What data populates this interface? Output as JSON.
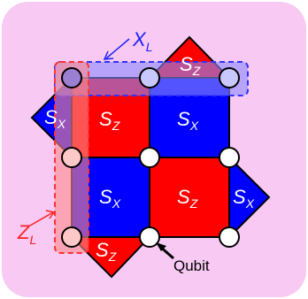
{
  "labels": {
    "stabilizer_z": "S",
    "stabilizer_x": "S",
    "sub_z": "Z",
    "sub_x": "X",
    "logical_x": "X",
    "logical_x_sub": "L",
    "logical_z": "Z",
    "logical_z_sub": "L",
    "qubit": "Qubit"
  },
  "colors": {
    "background_panel": "#f7c9f3",
    "plaquette_z": "#ff0000",
    "plaquette_x": "#0000ff",
    "logical_x_highlight": "#8c8cff",
    "logical_z_highlight": "#ff8c8c",
    "logical_x_border": "#3232ff",
    "logical_z_border": "#ff3232",
    "qubit_fill": "#ffffff",
    "outline": "#000000"
  }
}
